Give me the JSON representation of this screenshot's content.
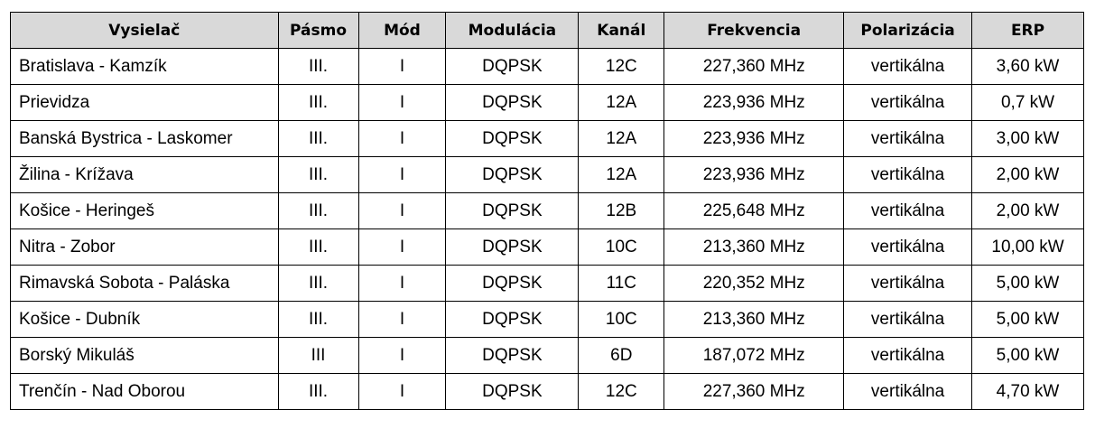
{
  "table": {
    "headers": [
      "Vysielač",
      "Pásmo",
      "Mód",
      "Modulácia",
      "Kanál",
      "Frekvencia",
      "Polarizácia",
      "ERP"
    ],
    "rows": [
      [
        "Bratislava - Kamzík",
        "III.",
        "I",
        "DQPSK",
        "12C",
        "227,360 MHz",
        "vertikálna",
        "3,60 kW"
      ],
      [
        "Prievidza",
        "III.",
        "I",
        "DQPSK",
        "12A",
        "223,936 MHz",
        "vertikálna",
        "0,7 kW"
      ],
      [
        "Banská Bystrica - Laskomer",
        "III.",
        "I",
        "DQPSK",
        "12A",
        "223,936 MHz",
        "vertikálna",
        "3,00 kW"
      ],
      [
        "Žilina - Krížava",
        "III.",
        "I",
        "DQPSK",
        "12A",
        "223,936 MHz",
        "vertikálna",
        "2,00 kW"
      ],
      [
        "Košice - Heringeš",
        "III.",
        "I",
        "DQPSK",
        "12B",
        "225,648 MHz",
        "vertikálna",
        "2,00 kW"
      ],
      [
        "Nitra - Zobor",
        "III.",
        "I",
        "DQPSK",
        "10C",
        "213,360 MHz",
        "vertikálna",
        "10,00 kW"
      ],
      [
        "Rimavská Sobota - Paláska",
        "III.",
        "I",
        "DQPSK",
        "11C",
        "220,352 MHz",
        "vertikálna",
        "5,00 kW"
      ],
      [
        "Košice - Dubník",
        "III.",
        "I",
        "DQPSK",
        "10C",
        "213,360 MHz",
        "vertikálna",
        "5,00 kW"
      ],
      [
        "Borský Mikuláš",
        "III",
        "I",
        "DQPSK",
        "6D",
        "187,072 MHz",
        "vertikálna",
        "5,00 kW"
      ],
      [
        "Trenčín - Nad Oborou",
        "III.",
        "I",
        "DQPSK",
        "12C",
        "227,360 MHz",
        "vertikálna",
        "4,70 kW"
      ]
    ]
  }
}
